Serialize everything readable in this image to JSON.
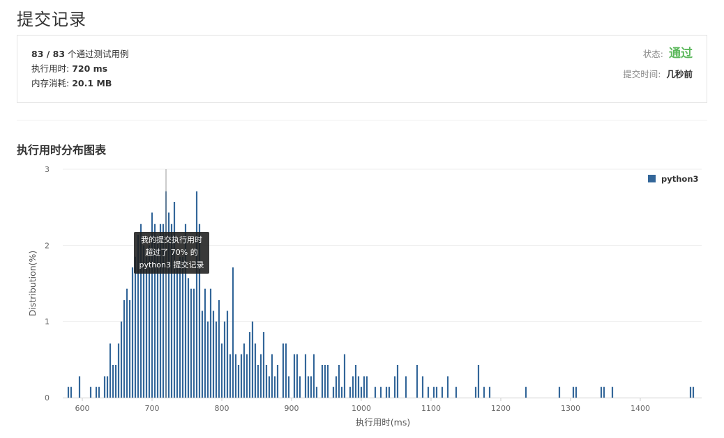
{
  "page": {
    "title": "提交记录"
  },
  "summary": {
    "passed": "83 / 83",
    "passed_suffix": "个通过测试用例",
    "runtime_label": "执行用时:",
    "runtime_value": "720 ms",
    "memory_label": "内存消耗:",
    "memory_value": "20.1 MB",
    "status_label": "状态:",
    "status_value": "通过",
    "submit_time_label": "提交时间:",
    "submit_time_value": "几秒前",
    "status_color": "#5cb85c"
  },
  "section": {
    "title": "执行用时分布图表"
  },
  "tooltip": {
    "line1": "我的提交执行用时",
    "line2": "超过了 70% 的",
    "line3": "python3 提交记录"
  },
  "chart_data": {
    "type": "bar",
    "xlabel": "执行用时(ms)",
    "ylabel": "Distribution(%)",
    "xlim": [
      572,
      1488
    ],
    "ylim": [
      0,
      3
    ],
    "xticks": [
      600,
      700,
      800,
      900,
      1000,
      1100,
      1200,
      1300,
      1400
    ],
    "yticks": [
      0,
      1,
      2,
      3
    ],
    "grid": true,
    "legend_position": "top-right",
    "marker_x": 720,
    "series": [
      {
        "name": "python3",
        "color": "#336699",
        "x": [
          580,
          584,
          596,
          612,
          620,
          624,
          632,
          636,
          640,
          644,
          648,
          652,
          656,
          660,
          664,
          668,
          672,
          676,
          680,
          684,
          688,
          692,
          696,
          700,
          704,
          708,
          712,
          716,
          720,
          724,
          728,
          732,
          736,
          740,
          744,
          748,
          752,
          756,
          760,
          764,
          768,
          772,
          776,
          780,
          784,
          788,
          792,
          796,
          800,
          804,
          808,
          812,
          816,
          820,
          824,
          828,
          832,
          836,
          840,
          844,
          848,
          852,
          856,
          860,
          864,
          868,
          872,
          876,
          880,
          888,
          892,
          896,
          904,
          908,
          912,
          920,
          924,
          928,
          932,
          936,
          944,
          948,
          952,
          960,
          964,
          968,
          972,
          976,
          984,
          988,
          992,
          996,
          1000,
          1004,
          1008,
          1020,
          1028,
          1036,
          1040,
          1048,
          1052,
          1064,
          1080,
          1088,
          1096,
          1104,
          1108,
          1116,
          1124,
          1136,
          1164,
          1168,
          1176,
          1184,
          1236,
          1284,
          1304,
          1308,
          1344,
          1348,
          1360,
          1472,
          1476
        ],
        "values": [
          0.14,
          0.14,
          0.28,
          0.14,
          0.14,
          0.14,
          0.28,
          0.28,
          0.71,
          0.43,
          0.43,
          0.71,
          1.0,
          1.28,
          1.43,
          1.28,
          1.71,
          1.85,
          2.14,
          2.28,
          2.0,
          1.85,
          2.0,
          2.43,
          2.28,
          2.14,
          2.28,
          2.28,
          2.71,
          2.43,
          2.28,
          2.57,
          1.71,
          1.85,
          1.85,
          2.28,
          1.57,
          1.43,
          1.43,
          2.71,
          2.28,
          1.14,
          1.43,
          1.0,
          1.43,
          1.14,
          1.0,
          1.28,
          0.71,
          1.0,
          1.14,
          0.57,
          1.71,
          0.57,
          0.43,
          0.57,
          0.71,
          0.57,
          0.86,
          1.0,
          0.71,
          0.43,
          0.57,
          0.86,
          0.43,
          0.28,
          0.57,
          0.28,
          0.43,
          0.71,
          0.71,
          0.28,
          0.57,
          0.57,
          0.28,
          0.57,
          0.28,
          0.28,
          0.57,
          0.14,
          0.43,
          0.43,
          0.43,
          0.14,
          0.28,
          0.43,
          0.14,
          0.57,
          0.14,
          0.28,
          0.43,
          0.28,
          0.14,
          0.28,
          0.28,
          0.14,
          0.14,
          0.14,
          0.14,
          0.28,
          0.43,
          0.28,
          0.43,
          0.28,
          0.14,
          0.14,
          0.14,
          0.14,
          0.28,
          0.14,
          0.14,
          0.43,
          0.14,
          0.14,
          0.14,
          0.14,
          0.14,
          0.14,
          0.14,
          0.14,
          0.14,
          0.14,
          0.14
        ]
      }
    ]
  }
}
